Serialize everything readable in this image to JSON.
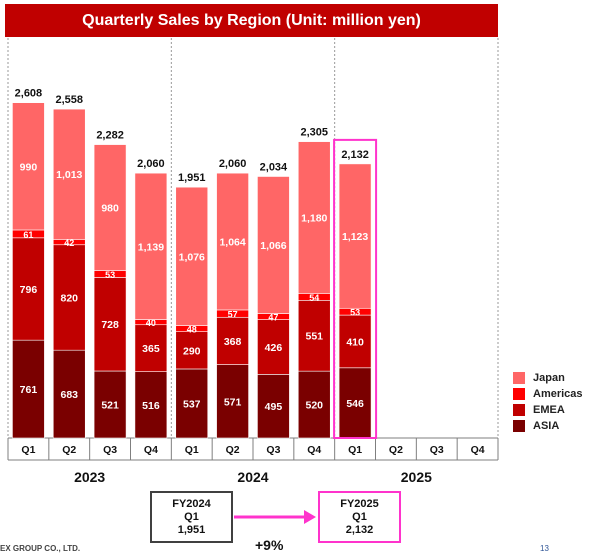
{
  "title": "Quarterly Sales by Region (Unit: million yen)",
  "legend": [
    {
      "name": "Japan",
      "color": "#ff6666"
    },
    {
      "name": "Americas",
      "color": "#ff0000"
    },
    {
      "name": "EMEA",
      "color": "#c00000"
    },
    {
      "name": "ASIA",
      "color": "#7a0000"
    }
  ],
  "chart_data": {
    "type": "bar",
    "stacked": true,
    "title": "Quarterly Sales by Region (Unit: million yen)",
    "years": [
      "2023",
      "2024",
      "2025"
    ],
    "categories": [
      "Q1",
      "Q2",
      "Q3",
      "Q4",
      "Q1",
      "Q2",
      "Q3",
      "Q4",
      "Q1",
      "Q2",
      "Q3",
      "Q4"
    ],
    "series": [
      {
        "name": "ASIA",
        "values": [
          761,
          683,
          521,
          516,
          537,
          571,
          495,
          520,
          546,
          null,
          null,
          null
        ]
      },
      {
        "name": "EMEA",
        "values": [
          796,
          820,
          728,
          365,
          290,
          368,
          426,
          551,
          410,
          null,
          null,
          null
        ]
      },
      {
        "name": "Americas",
        "values": [
          61,
          42,
          53,
          40,
          48,
          57,
          47,
          54,
          53,
          null,
          null,
          null
        ]
      },
      {
        "name": "Japan",
        "values": [
          990,
          1013,
          980,
          1139,
          1076,
          1064,
          1066,
          1180,
          1123,
          null,
          null,
          null
        ]
      }
    ],
    "totals": [
      "2,608",
      "2,558",
      "2,282",
      "2,060",
      "1,951",
      "2,060",
      "2,034",
      "2,305",
      "2,132",
      "",
      "",
      ""
    ],
    "ylim": [
      0,
      2800
    ],
    "highlight_index": 8,
    "legend_position": "right"
  },
  "comparison": {
    "left": {
      "line1": "FY2024",
      "line2": "Q1",
      "value": "1,951"
    },
    "right": {
      "line1": "FY2025",
      "line2": "Q1",
      "value": "2,132"
    },
    "change": "+9%"
  },
  "footer": {
    "company": "EX GROUP CO., LTD.",
    "page": "13"
  }
}
